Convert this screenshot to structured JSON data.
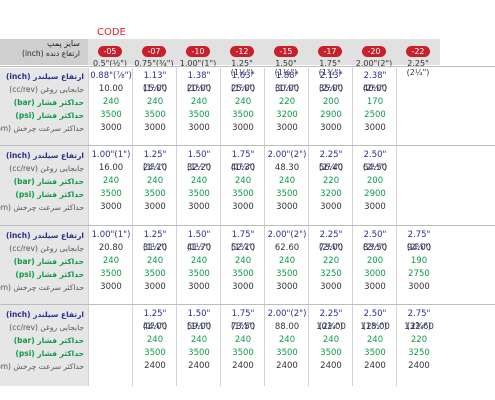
{
  "code_label": "CODE",
  "header": {
    "line1": "سایز پمپ",
    "line2": "ارتفاع دنده (inch)"
  },
  "codes": [
    "-05",
    "-07",
    "-10",
    "-12",
    "-15",
    "-17",
    "-20",
    "-22"
  ],
  "sizes": [
    "0.5\"(½\")",
    "0.75\"(¾\")",
    "1.00\"(1\")",
    "1.25\"(1¼\")",
    "1.50\"(1½\")",
    "1.75\"(1¾\")",
    "2.00\"(2\")",
    "2.25\"(2¼\")"
  ],
  "row_labels": [
    "ارتفاع سیلندر (inch)",
    "جابجایی روغن (cc/rev)",
    "حداکثر فشار (bar)",
    "حداکثر فشار (psi)",
    "حداکثر سرعت چرخش (rpm)"
  ],
  "blocks": [
    {
      "cols": [
        [
          "0.88\"(⅞\")",
          "10.00",
          "240",
          "3500",
          "3000"
        ],
        [
          "1.13\"(1⅛\")",
          "15.00",
          "240",
          "3500",
          "3000"
        ],
        [
          "1.38\"(1⅜\")",
          "20.00",
          "240",
          "3500",
          "3000"
        ],
        [
          "1.63\"(1⅝\")",
          "25.00",
          "240",
          "3500",
          "3000"
        ],
        [
          "1.88\"(1⅞\")",
          "30.00",
          "220",
          "3200",
          "3000"
        ],
        [
          "2.13\"(2⅛\")",
          "35.00",
          "200",
          "2900",
          "3000"
        ],
        [
          "2.38\"(2⅜\")",
          "40.00",
          "170",
          "2500",
          "3000"
        ],
        [
          "",
          "",
          "",
          "",
          ""
        ]
      ]
    },
    {
      "cols": [
        [
          "1.00\"(1\")",
          "16.00",
          "240",
          "3500",
          "3000"
        ],
        [
          "1.25\"(1¼\")",
          "24.10",
          "240",
          "3500",
          "3000"
        ],
        [
          "1.50\"(1½\")",
          "32.20",
          "240",
          "3500",
          "3000"
        ],
        [
          "1.75\"(1¾\")",
          "40.30",
          "240",
          "3500",
          "3000"
        ],
        [
          "2.00\"(2\")",
          "48.30",
          "240",
          "3500",
          "3000"
        ],
        [
          "2.25\"(2¼\")",
          "56.40",
          "220",
          "3200",
          "3000"
        ],
        [
          "2.50\"(2½\")",
          "64.50",
          "200",
          "2900",
          "3000"
        ],
        [
          "",
          "",
          "",
          "",
          ""
        ]
      ]
    },
    {
      "cols": [
        [
          "1.00\"(1\")",
          "20.80",
          "240",
          "3500",
          "3000"
        ],
        [
          "1.25\"(1¼\")",
          "31.20",
          "240",
          "3500",
          "3000"
        ],
        [
          "1.50\"(1½\")",
          "41.70",
          "240",
          "3500",
          "3000"
        ],
        [
          "1.75\"(1¾\")",
          "52.10",
          "240",
          "3500",
          "3000"
        ],
        [
          "2.00\"(2\")",
          "62.60",
          "240",
          "3500",
          "3000"
        ],
        [
          "2.25\"(2¼\")",
          "73.00",
          "220",
          "3250",
          "3000"
        ],
        [
          "2.50\"(2½\")",
          "83.50",
          "200",
          "3000",
          "3000"
        ],
        [
          "2.75\"(2¾\")",
          "94.00",
          "190",
          "2750",
          "3000"
        ]
      ]
    },
    {
      "cols": [
        [
          "",
          "",
          "",
          "",
          ""
        ],
        [
          "1.25\"(1¼\")",
          "44.00",
          "240",
          "3500",
          "2400"
        ],
        [
          "1.50\"(1½\")",
          "59.00",
          "240",
          "3500",
          "2400"
        ],
        [
          "1.75\"(1¾\")",
          "73.50",
          "240",
          "3500",
          "2400"
        ],
        [
          "2.00\"(2\")",
          "88.00",
          "240",
          "3500",
          "2400"
        ],
        [
          "2.25\"(2¼\")",
          "102.00",
          "240",
          "3500",
          "2400"
        ],
        [
          "2.50\"(2½\")",
          "118.00",
          "240",
          "3500",
          "2400"
        ],
        [
          "2.75\"(2¾\")",
          "132.60",
          "220",
          "3250",
          "2400"
        ]
      ]
    }
  ],
  "colors": {
    "code_pill": "#c8202a",
    "blue": "#2a2f8e",
    "green": "#0c9a48"
  }
}
